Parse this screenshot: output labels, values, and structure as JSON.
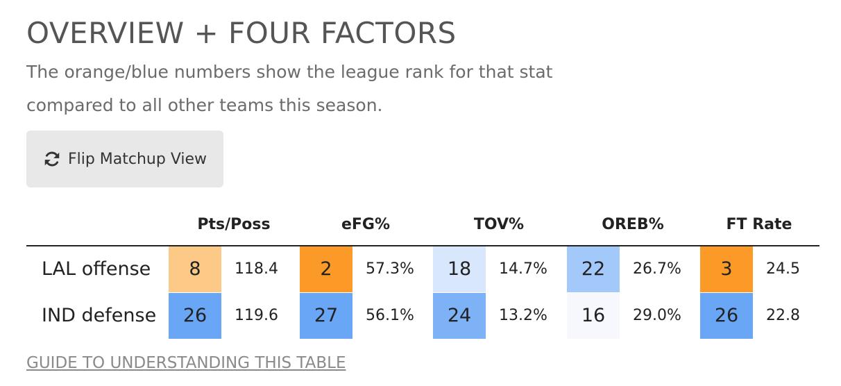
{
  "title": "OVERVIEW + FOUR FACTORS",
  "subtitle": "The orange/blue numbers show the league rank for that stat compared to all other teams this season.",
  "flip_button": {
    "label": "Flip Matchup View",
    "icon": "refresh-icon"
  },
  "columns": [
    "Pts/Poss",
    "eFG%",
    "TOV%",
    "OREB%",
    "FT Rate"
  ],
  "rows": [
    {
      "label": "LAL offense",
      "cells": [
        {
          "rank": "8",
          "value": "118.4",
          "color": "#fdc987"
        },
        {
          "rank": "2",
          "value": "57.3%",
          "color": "#fb9a26"
        },
        {
          "rank": "18",
          "value": "14.7%",
          "color": "#d9e7fd"
        },
        {
          "rank": "22",
          "value": "26.7%",
          "color": "#a3c9fb"
        },
        {
          "rank": "3",
          "value": "24.5",
          "color": "#fb9a26"
        }
      ]
    },
    {
      "label": "IND defense",
      "cells": [
        {
          "rank": "26",
          "value": "119.6",
          "color": "#69a6f6"
        },
        {
          "rank": "27",
          "value": "56.1%",
          "color": "#69a6f6"
        },
        {
          "rank": "24",
          "value": "13.2%",
          "color": "#7db2f7"
        },
        {
          "rank": "16",
          "value": "29.0%",
          "color": "#f6f8fd"
        },
        {
          "rank": "26",
          "value": "22.8",
          "color": "#69a6f6"
        }
      ]
    }
  ],
  "guide_link": "GUIDE TO UNDERSTANDING THIS TABLE"
}
